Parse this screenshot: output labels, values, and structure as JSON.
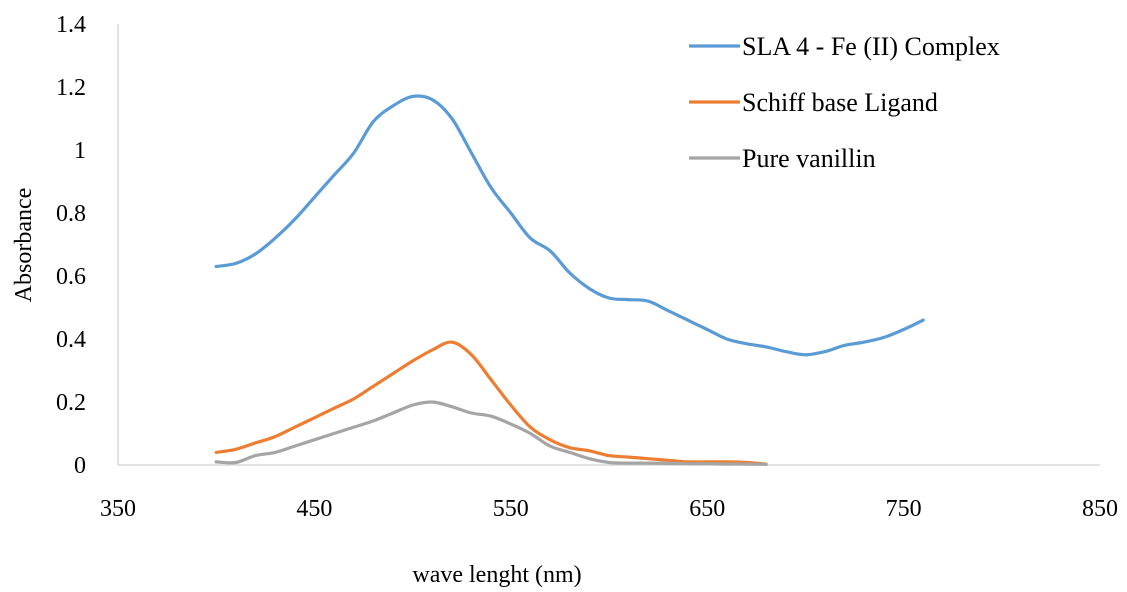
{
  "chart_data": {
    "type": "line",
    "title": "",
    "xlabel": "wave lenght (nm)",
    "ylabel": "Absorbance",
    "xlim": [
      350,
      850
    ],
    "ylim": [
      0,
      1.4
    ],
    "xticks": [
      "350",
      "450",
      "550",
      "650",
      "750",
      "850"
    ],
    "yticks": [
      "0",
      "0.2",
      "0.4",
      "0.6",
      "0.8",
      "1",
      "1.2",
      "1.4"
    ],
    "grid": false,
    "legend_position": "top-right",
    "series": [
      {
        "name": "SLA 4 - Fe (II) Complex",
        "color": "#5B9BD5",
        "x": [
          400,
          410,
          420,
          430,
          440,
          450,
          460,
          470,
          480,
          490,
          500,
          510,
          520,
          530,
          540,
          550,
          560,
          570,
          580,
          590,
          600,
          610,
          620,
          630,
          640,
          650,
          660,
          670,
          680,
          690,
          700,
          710,
          720,
          730,
          740,
          750,
          760
        ],
        "values": [
          0.63,
          0.64,
          0.67,
          0.72,
          0.78,
          0.85,
          0.92,
          0.99,
          1.09,
          1.14,
          1.17,
          1.16,
          1.1,
          0.99,
          0.88,
          0.8,
          0.72,
          0.68,
          0.61,
          0.56,
          0.53,
          0.525,
          0.52,
          0.49,
          0.46,
          0.43,
          0.4,
          0.385,
          0.375,
          0.36,
          0.35,
          0.36,
          0.38,
          0.39,
          0.405,
          0.43,
          0.46
        ]
      },
      {
        "name": "Schiff base Ligand",
        "color": "#ED7D31",
        "x": [
          400,
          410,
          420,
          430,
          440,
          450,
          460,
          470,
          480,
          490,
          500,
          510,
          520,
          530,
          540,
          550,
          560,
          570,
          580,
          590,
          600,
          610,
          620,
          630,
          640,
          650,
          660,
          670,
          680
        ],
        "values": [
          0.04,
          0.05,
          0.07,
          0.09,
          0.12,
          0.15,
          0.18,
          0.21,
          0.25,
          0.29,
          0.33,
          0.365,
          0.39,
          0.35,
          0.27,
          0.19,
          0.12,
          0.08,
          0.055,
          0.045,
          0.03,
          0.025,
          0.02,
          0.015,
          0.01,
          0.01,
          0.01,
          0.008,
          0.003
        ]
      },
      {
        "name": "Pure vanillin",
        "color": "#A5A5A5",
        "x": [
          400,
          410,
          420,
          430,
          440,
          450,
          460,
          470,
          480,
          490,
          500,
          510,
          520,
          530,
          540,
          550,
          560,
          570,
          580,
          590,
          600,
          610,
          620,
          630,
          640,
          650,
          660,
          670,
          680
        ],
        "values": [
          0.01,
          0.008,
          0.03,
          0.04,
          0.06,
          0.08,
          0.1,
          0.12,
          0.14,
          0.165,
          0.19,
          0.2,
          0.185,
          0.165,
          0.155,
          0.13,
          0.1,
          0.06,
          0.04,
          0.02,
          0.008,
          0.006,
          0.006,
          0.005,
          0.004,
          0.004,
          0.003,
          0.003,
          0.002
        ]
      }
    ]
  }
}
